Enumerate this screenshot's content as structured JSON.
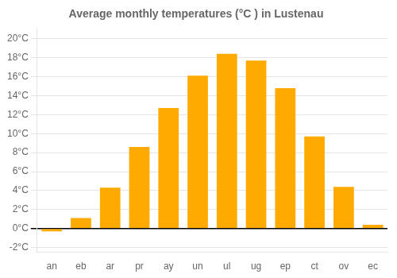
{
  "chart_data": {
    "type": "bar",
    "title": "Average monthly temperatures (°C ) in Lustenau",
    "categories": [
      "an",
      "eb",
      "ar",
      "pr",
      "ay",
      "un",
      "ul",
      "ug",
      "ep",
      "ct",
      "ov",
      "ec"
    ],
    "values": [
      -0.3,
      1.1,
      4.3,
      8.6,
      12.7,
      16.1,
      18.4,
      17.7,
      14.8,
      9.7,
      4.4,
      0.4
    ],
    "color": "#FFAA00",
    "ylim": [
      -2.5,
      21
    ],
    "yticks": [
      {
        "value": -2,
        "label": "-2°C"
      },
      {
        "value": 0,
        "label": "0°C"
      },
      {
        "value": 2,
        "label": "2°C"
      },
      {
        "value": 4,
        "label": "4°C"
      },
      {
        "value": 6,
        "label": "6°C"
      },
      {
        "value": 8,
        "label": "8°C"
      },
      {
        "value": 10,
        "label": "10°C"
      },
      {
        "value": 12,
        "label": "12°C"
      },
      {
        "value": 14,
        "label": "14°C"
      },
      {
        "value": 16,
        "label": "16°C"
      },
      {
        "value": 18,
        "label": "18°C"
      },
      {
        "value": 20,
        "label": "20°C"
      }
    ],
    "grid": true
  }
}
